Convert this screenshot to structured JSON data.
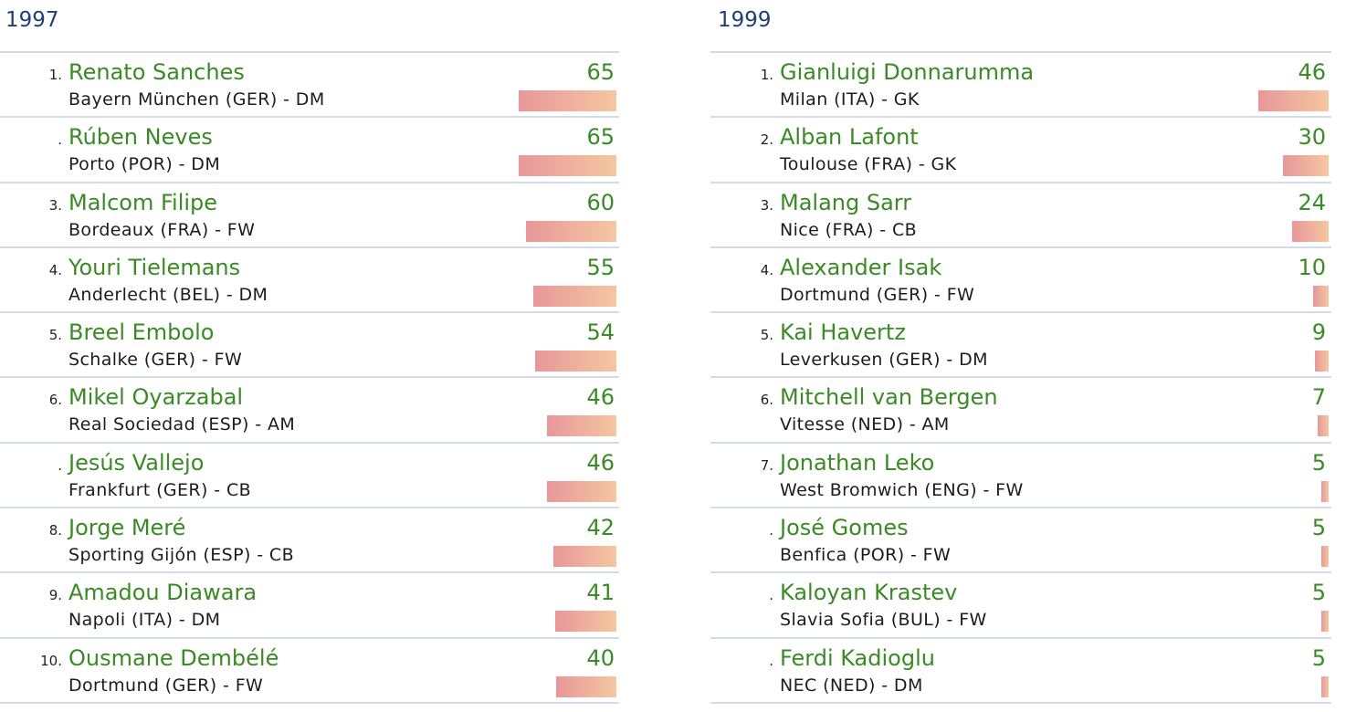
{
  "left": {
    "year": "1997",
    "max_score": 65,
    "rows": [
      {
        "rank": "1.",
        "name": "Renato Sanches",
        "club": "Bayern München (GER) - DM",
        "score": "65",
        "value": 65
      },
      {
        "rank": ".",
        "name": "Rúben Neves",
        "club": "Porto (POR) - DM",
        "score": "65",
        "value": 65
      },
      {
        "rank": "3.",
        "name": "Malcom Filipe",
        "club": "Bordeaux (FRA) - FW",
        "score": "60",
        "value": 60
      },
      {
        "rank": "4.",
        "name": "Youri Tielemans",
        "club": "Anderlecht (BEL) - DM",
        "score": "55",
        "value": 55
      },
      {
        "rank": "5.",
        "name": "Breel Embolo",
        "club": "Schalke (GER) - FW",
        "score": "54",
        "value": 54
      },
      {
        "rank": "6.",
        "name": "Mikel Oyarzabal",
        "club": "Real Sociedad (ESP) - AM",
        "score": "46",
        "value": 46
      },
      {
        "rank": ".",
        "name": "Jesús Vallejo",
        "club": "Frankfurt (GER) - CB",
        "score": "46",
        "value": 46
      },
      {
        "rank": "8.",
        "name": "Jorge Meré",
        "club": "Sporting Gijón (ESP) - CB",
        "score": "42",
        "value": 42
      },
      {
        "rank": "9.",
        "name": "Amadou Diawara",
        "club": "Napoli (ITA) - DM",
        "score": "41",
        "value": 41
      },
      {
        "rank": "10.",
        "name": "Ousmane Dembélé",
        "club": "Dortmund (GER) - FW",
        "score": "40",
        "value": 40
      }
    ]
  },
  "right": {
    "year": "1999",
    "max_score": 46,
    "rows": [
      {
        "rank": "1.",
        "name": "Gianluigi Donnarumma",
        "club": "Milan (ITA) - GK",
        "score": "46",
        "value": 46
      },
      {
        "rank": "2.",
        "name": "Alban Lafont",
        "club": "Toulouse (FRA) - GK",
        "score": "30",
        "value": 30
      },
      {
        "rank": "3.",
        "name": "Malang Sarr",
        "club": "Nice (FRA) - CB",
        "score": "24",
        "value": 24
      },
      {
        "rank": "4.",
        "name": "Alexander Isak",
        "club": "Dortmund (GER) - FW",
        "score": "10",
        "value": 10
      },
      {
        "rank": "5.",
        "name": "Kai Havertz",
        "club": "Leverkusen (GER) - DM",
        "score": "9",
        "value": 9
      },
      {
        "rank": "6.",
        "name": "Mitchell van Bergen",
        "club": "Vitesse (NED) - AM",
        "score": "7",
        "value": 7
      },
      {
        "rank": "7.",
        "name": "Jonathan Leko",
        "club": "West Bromwich (ENG) - FW",
        "score": "5",
        "value": 5
      },
      {
        "rank": ".",
        "name": "José Gomes",
        "club": "Benfica (POR) - FW",
        "score": "5",
        "value": 5
      },
      {
        "rank": ".",
        "name": "Kaloyan Krastev",
        "club": "Slavia Sofia (BUL) - FW",
        "score": "5",
        "value": 5
      },
      {
        "rank": ".",
        "name": "Ferdi Kadioglu",
        "club": "NEC (NED) - DM",
        "score": "5",
        "value": 5
      }
    ]
  },
  "colors": {
    "year": "#1f3f78",
    "name": "#3a8a25",
    "bar_start": "#e8979a",
    "bar_end": "#f4c7a0",
    "divider": "#d5dbe6"
  }
}
